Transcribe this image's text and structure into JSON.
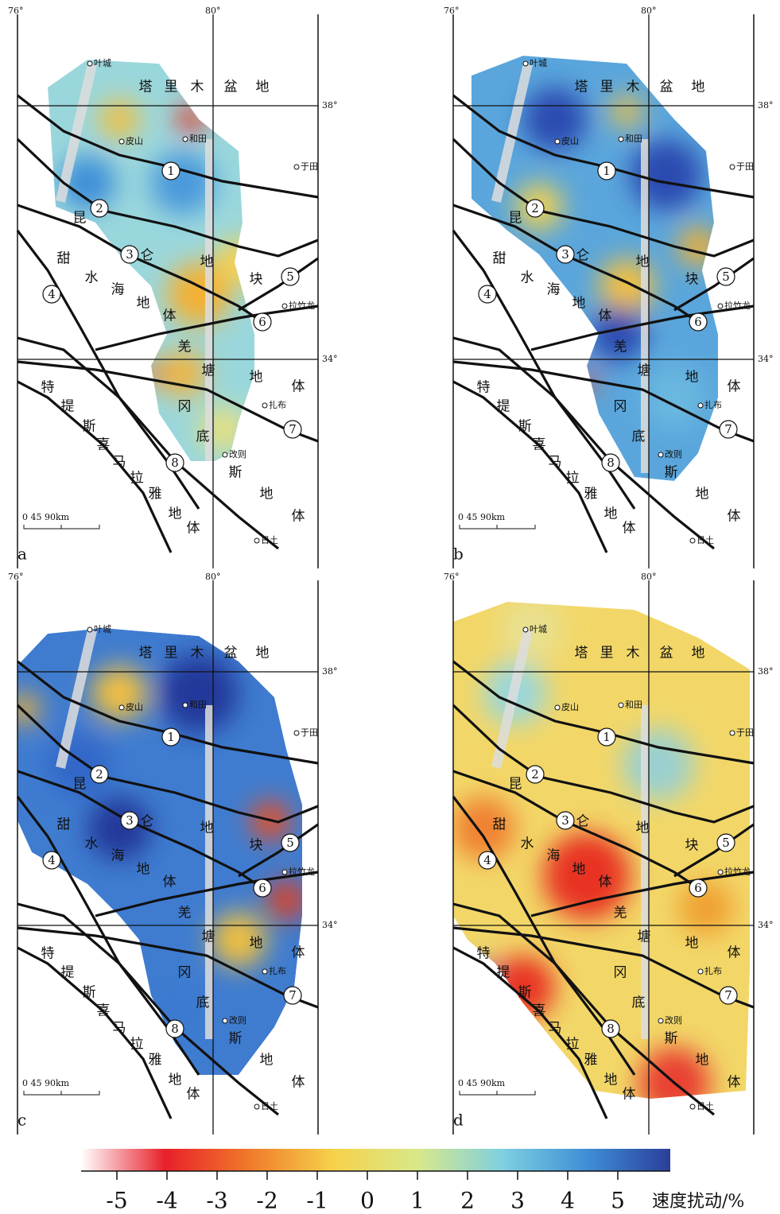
{
  "panels": [
    {
      "letter": "a"
    },
    {
      "letter": "b"
    },
    {
      "letter": "c"
    },
    {
      "letter": "d"
    }
  ],
  "map": {
    "lon_labels": [
      "76°",
      "80°"
    ],
    "lat_labels": [
      "38°",
      "34°"
    ],
    "basin": [
      "塔",
      "里",
      "木",
      "盆",
      "地"
    ],
    "towns": [
      "叶城",
      "皮山",
      "和田",
      "于田",
      "拉竹龙",
      "扎布",
      "改则",
      "日土"
    ],
    "terranes": [
      [
        "昆",
        "仑",
        "地",
        "块"
      ],
      [
        "甜",
        "水",
        "海",
        "地",
        "体"
      ],
      [
        "羌",
        "塘",
        "地",
        "体"
      ],
      [
        "冈",
        "底",
        "斯",
        "地",
        "体"
      ],
      [
        "特",
        "提",
        "斯",
        "喜",
        "马",
        "拉",
        "雅",
        "地",
        "体"
      ]
    ],
    "fault_numbers": [
      1,
      2,
      3,
      4,
      5,
      6,
      7,
      8
    ],
    "scale_bar": "0  45  90km"
  },
  "colorbar": {
    "ticks": [
      -5,
      -4,
      -3,
      -2,
      -1,
      0,
      1,
      2,
      3,
      4,
      5
    ],
    "label": "速度扰动/%",
    "colors": [
      "#ffffff",
      "#e8202a",
      "#f07a2a",
      "#f6d24a",
      "#d8e88a",
      "#7fd0e0",
      "#3f8fd6",
      "#2a3f9a"
    ]
  }
}
